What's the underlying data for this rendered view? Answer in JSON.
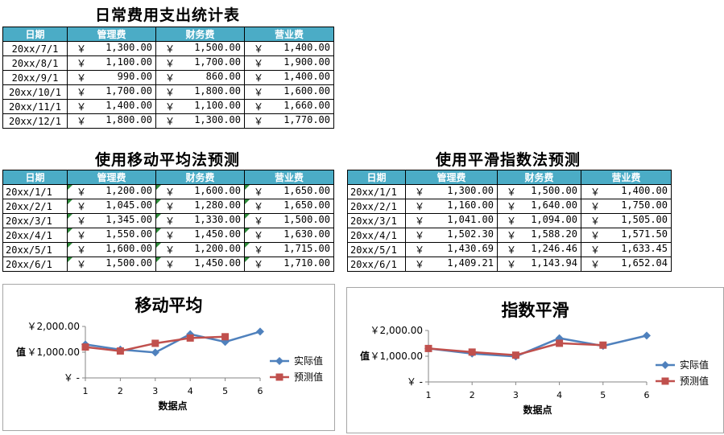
{
  "stats_table": {
    "title": "日常费用支出统计表",
    "headers": [
      "日期",
      "管理费",
      "财务费",
      "营业费"
    ],
    "rows": [
      [
        "20xx/7/1",
        "1,300.00",
        "1,500.00",
        "1,400.00"
      ],
      [
        "20xx/8/1",
        "1,100.00",
        "1,700.00",
        "1,900.00"
      ],
      [
        "20xx/9/1",
        "990.00",
        "860.00",
        "1,400.00"
      ],
      [
        "20xx/10/1",
        "1,700.00",
        "1,800.00",
        "1,600.00"
      ],
      [
        "20xx/11/1",
        "1,400.00",
        "1,100.00",
        "1,660.00"
      ],
      [
        "20xx/12/1",
        "1,800.00",
        "1,300.00",
        "1,770.00"
      ]
    ]
  },
  "moving_avg_table": {
    "title": "使用移动平均法预测",
    "headers": [
      "日期",
      "管理费",
      "财务费",
      "营业费"
    ],
    "rows": [
      [
        "20xx/1/1",
        "1,200.00",
        "1,600.00",
        "1,650.00"
      ],
      [
        "20xx/2/1",
        "1,045.00",
        "1,280.00",
        "1,650.00"
      ],
      [
        "20xx/3/1",
        "1,345.00",
        "1,330.00",
        "1,500.00"
      ],
      [
        "20xx/4/1",
        "1,550.00",
        "1,450.00",
        "1,630.00"
      ],
      [
        "20xx/5/1",
        "1,600.00",
        "1,200.00",
        "1,715.00"
      ],
      [
        "20xx/6/1",
        "1,500.00",
        "1,450.00",
        "1,710.00"
      ]
    ]
  },
  "smoothing_table": {
    "title": "使用平滑指数法预测",
    "headers": [
      "日期",
      "管理费",
      "财务费",
      "营业费"
    ],
    "rows": [
      [
        "20xx/1/1",
        "1,300.00",
        "1,500.00",
        "1,400.00"
      ],
      [
        "20xx/2/1",
        "1,160.00",
        "1,640.00",
        "1,750.00"
      ],
      [
        "20xx/3/1",
        "1,041.00",
        "1,094.00",
        "1,505.00"
      ],
      [
        "20xx/4/1",
        "1,502.30",
        "1,588.20",
        "1,571.50"
      ],
      [
        "20xx/5/1",
        "1,430.69",
        "1,246.46",
        "1,633.45"
      ],
      [
        "20xx/6/1",
        "1,409.21",
        "1,143.94",
        "1,652.04"
      ]
    ]
  },
  "currency_symbol": "￥",
  "colors": {
    "header_bg": "#4bacc6",
    "actual": "#4f81bd",
    "forecast": "#c0504d",
    "marker_green": "#2e8b3a"
  },
  "chart_data": [
    {
      "type": "line",
      "title": "移动平均",
      "xlabel": "数据点",
      "ylabel": "值",
      "x": [
        1,
        2,
        3,
        4,
        5,
        6
      ],
      "ylim": [
        0,
        2000
      ],
      "yticks": [
        "￥ -",
        "￥1,000.00",
        "￥2,000.00"
      ],
      "series": [
        {
          "name": "实际值",
          "values": [
            1300,
            1100,
            990,
            1700,
            1400,
            1800
          ]
        },
        {
          "name": "预测值",
          "values": [
            1200,
            1045,
            1345,
            1550,
            1600,
            null
          ]
        }
      ],
      "legend": "right"
    },
    {
      "type": "line",
      "title": "指数平滑",
      "xlabel": "数据点",
      "ylabel": "值",
      "x": [
        1,
        2,
        3,
        4,
        5,
        6
      ],
      "ylim": [
        0,
        2000
      ],
      "yticks": [
        "￥ -",
        "￥1,000.00",
        "￥2,000.00"
      ],
      "series": [
        {
          "name": "实际值",
          "values": [
            1300,
            1100,
            990,
            1700,
            1400,
            1800
          ]
        },
        {
          "name": "预测值",
          "values": [
            1300,
            1160,
            1041,
            1502.3,
            1430.69,
            null
          ]
        }
      ],
      "legend": "right"
    }
  ]
}
